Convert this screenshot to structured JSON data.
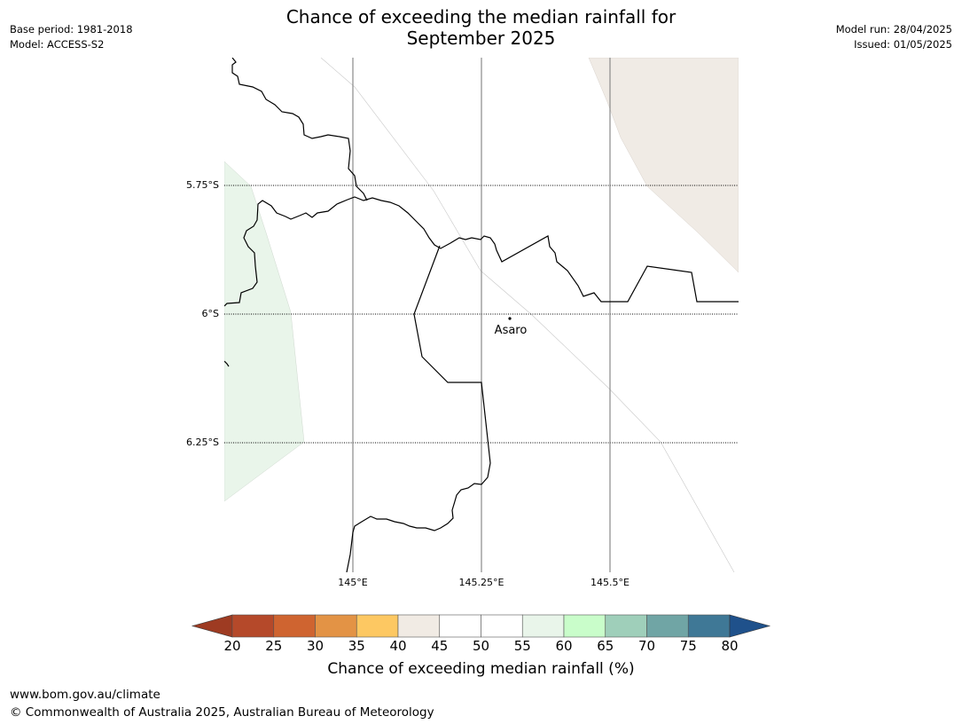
{
  "title_line1": "Chance of exceeding the median rainfall for",
  "title_line2": "September 2025",
  "meta_left": {
    "base_period": "Base period: 1981-2018",
    "model": "Model: ACCESS-S2"
  },
  "meta_right": {
    "model_run": "Model run: 28/04/2025",
    "issued": "Issued: 01/05/2025"
  },
  "map": {
    "latitude_labels": [
      "5.75°S",
      "6°S",
      "6.25°S"
    ],
    "longitude_labels": [
      "145°E",
      "145.25°E",
      "145.5°E"
    ],
    "place": {
      "name": "Asaro"
    },
    "region_colors": {
      "light_green": "#e9f5ea",
      "beige": "#f0ebe5"
    }
  },
  "colorbar": {
    "ticks": [
      "20",
      "25",
      "30",
      "35",
      "40",
      "45",
      "50",
      "55",
      "60",
      "65",
      "70",
      "75",
      "80"
    ],
    "colors": [
      "#9e3b22",
      "#b5492a",
      "#cf6430",
      "#e39345",
      "#fdc862",
      "#f1ebe4",
      "#ffffff",
      "#ffffff",
      "#e9f5ea",
      "#c9fdca",
      "#9fcfba",
      "#70a5a5",
      "#3f7896",
      "#1f518b"
    ],
    "label": "Chance of exceeding median rainfall (%)"
  },
  "footer": {
    "url": "www.bom.gov.au/climate",
    "copyright": "© Commonwealth of Australia 2025, Australian Bureau of Meteorology"
  }
}
